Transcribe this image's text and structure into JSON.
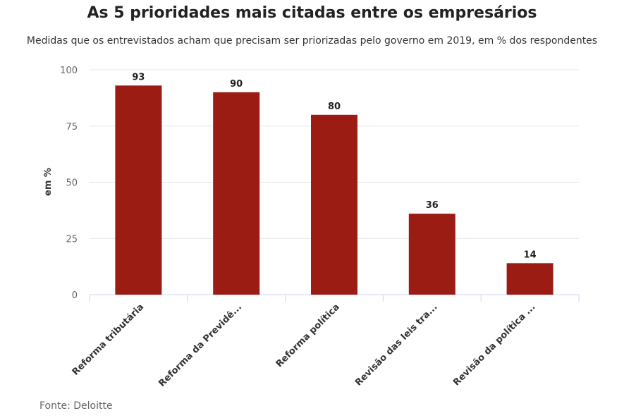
{
  "chart_data": {
    "type": "bar",
    "title": "As 5 prioridades mais citadas entre os empresários",
    "subtitle": "Medidas que os entrevistados acham que precisam ser priorizadas pelo governo em 2019, em % dos respondentes",
    "categories": [
      "Reforma tributária",
      "Reforma da Previdê...",
      "Reforma política",
      "Revisão das leis tra...",
      "Revisão da política ..."
    ],
    "values": [
      93,
      90,
      80,
      36,
      14
    ],
    "xlabel": "",
    "ylabel": "em %",
    "ylim": [
      0,
      100
    ],
    "yticks": [
      0,
      25,
      50,
      75,
      100
    ],
    "grid": true,
    "bar_color": "#9b1c13",
    "source": "Fonte: Deloitte"
  }
}
